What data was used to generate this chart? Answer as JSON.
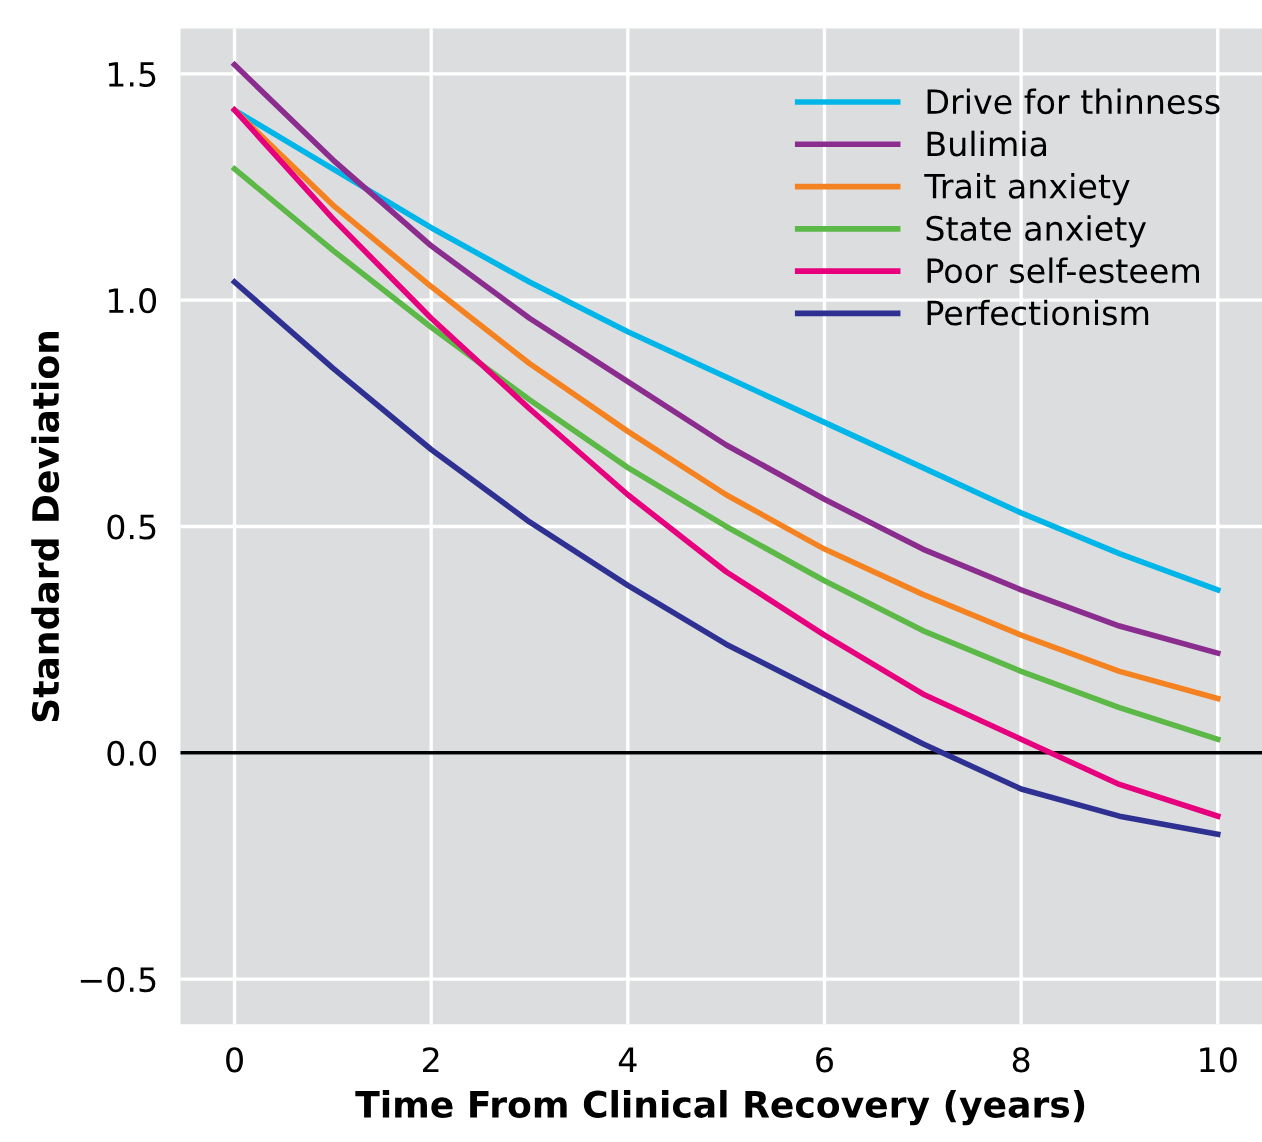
{
  "chart_data": {
    "type": "line",
    "xlabel": "Time From Clinical Recovery (years)",
    "ylabel": "Standard Deviation",
    "x": [
      0,
      1,
      2,
      3,
      4,
      5,
      6,
      7,
      8,
      9,
      10
    ],
    "series": [
      {
        "name": "Drive for thinness",
        "color": "#00b5e8",
        "values": [
          1.42,
          1.29,
          1.16,
          1.04,
          0.93,
          0.83,
          0.73,
          0.63,
          0.53,
          0.44,
          0.36
        ]
      },
      {
        "name": "Bulimia",
        "color": "#8b2d8f",
        "values": [
          1.52,
          1.31,
          1.12,
          0.96,
          0.82,
          0.68,
          0.56,
          0.45,
          0.36,
          0.28,
          0.22
        ]
      },
      {
        "name": "Trait anxiety",
        "color": "#f58220",
        "values": [
          1.42,
          1.21,
          1.03,
          0.86,
          0.71,
          0.57,
          0.45,
          0.35,
          0.26,
          0.18,
          0.12
        ]
      },
      {
        "name": "State anxiety",
        "color": "#5cb847",
        "values": [
          1.29,
          1.11,
          0.94,
          0.78,
          0.63,
          0.5,
          0.38,
          0.27,
          0.18,
          0.1,
          0.03
        ]
      },
      {
        "name": "Poor self-esteem",
        "color": "#e6007e",
        "values": [
          1.42,
          1.18,
          0.96,
          0.76,
          0.57,
          0.4,
          0.26,
          0.13,
          0.03,
          -0.07,
          -0.14
        ]
      },
      {
        "name": "Perfectionism",
        "color": "#2e3192",
        "values": [
          1.04,
          0.85,
          0.67,
          0.51,
          0.37,
          0.24,
          0.13,
          0.02,
          -0.08,
          -0.14,
          -0.18
        ]
      }
    ],
    "xlim": [
      -0.55,
      10.45
    ],
    "ylim": [
      -0.6,
      1.6
    ],
    "xticks": [
      0,
      2,
      4,
      6,
      8,
      10
    ],
    "yticks": [
      {
        "value": -0.5,
        "label": "−0.5"
      },
      {
        "value": 0,
        "label": "0.0"
      },
      {
        "value": 0.5,
        "label": "0.5"
      },
      {
        "value": 1,
        "label": "1.0"
      },
      {
        "value": 1.5,
        "label": "1.5"
      }
    ],
    "ref_lines": [
      {
        "axis": "y",
        "value": 0,
        "color": "#000000"
      }
    ],
    "grid": true,
    "legend": "top right",
    "marker": "none",
    "line_style": "solid"
  }
}
